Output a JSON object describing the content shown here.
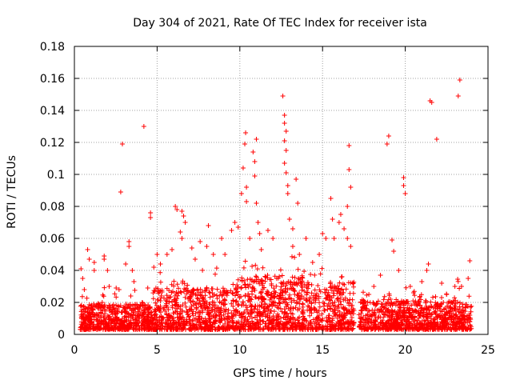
{
  "chart_data": {
    "type": "scatter",
    "title": "Day 304 of 2021, Rate Of TEC Index for receiver ista",
    "xlabel": "GPS time / hours",
    "ylabel": "ROTI / TECUs",
    "xlim": [
      0,
      25
    ],
    "ylim": [
      0,
      0.18
    ],
    "xticks": [
      0,
      5,
      10,
      15,
      20,
      25
    ],
    "xtick_labels": [
      "0",
      "5",
      "10",
      "15",
      "20",
      "25"
    ],
    "yticks": [
      0,
      0.02,
      0.04,
      0.06,
      0.08,
      0.1,
      0.12,
      0.14,
      0.16,
      0.18
    ],
    "ytick_labels": [
      "0",
      "0.02",
      "0.04",
      "0.06",
      "0.08",
      "0.1",
      "0.12",
      "0.14",
      "0.16",
      "0.18"
    ],
    "grid": true,
    "marker": "+",
    "series": [
      {
        "name": "ROTI",
        "color": "#ff0000",
        "points": [
          [
            0.4,
            0.041
          ],
          [
            0.5,
            0.035
          ],
          [
            0.6,
            0.028
          ],
          [
            0.8,
            0.053
          ],
          [
            0.9,
            0.047
          ],
          [
            1.2,
            0.045
          ],
          [
            1.2,
            0.04
          ],
          [
            1.8,
            0.049
          ],
          [
            1.8,
            0.047
          ],
          [
            2.0,
            0.04
          ],
          [
            2.1,
            0.03
          ],
          [
            2.7,
            0.028
          ],
          [
            2.8,
            0.089
          ],
          [
            2.9,
            0.119
          ],
          [
            3.1,
            0.044
          ],
          [
            3.3,
            0.058
          ],
          [
            3.3,
            0.055
          ],
          [
            3.5,
            0.04
          ],
          [
            3.6,
            0.033
          ],
          [
            4.1,
            0.02
          ],
          [
            4.2,
            0.13
          ],
          [
            4.6,
            0.076
          ],
          [
            4.6,
            0.073
          ],
          [
            4.5,
            0.016
          ],
          [
            4.8,
            0.042
          ],
          [
            5.0,
            0.05
          ],
          [
            5.2,
            0.044
          ],
          [
            5.6,
            0.05
          ],
          [
            5.9,
            0.053
          ],
          [
            6.1,
            0.08
          ],
          [
            6.2,
            0.078
          ],
          [
            6.4,
            0.064
          ],
          [
            6.5,
            0.077
          ],
          [
            6.6,
            0.074
          ],
          [
            6.7,
            0.07
          ],
          [
            6.5,
            0.06
          ],
          [
            7.1,
            0.054
          ],
          [
            7.3,
            0.047
          ],
          [
            7.6,
            0.058
          ],
          [
            8.0,
            0.055
          ],
          [
            8.1,
            0.068
          ],
          [
            8.4,
            0.05
          ],
          [
            8.9,
            0.06
          ],
          [
            9.1,
            0.05
          ],
          [
            9.5,
            0.065
          ],
          [
            9.7,
            0.07
          ],
          [
            9.9,
            0.067
          ],
          [
            10.1,
            0.088
          ],
          [
            10.2,
            0.104
          ],
          [
            10.3,
            0.119
          ],
          [
            10.35,
            0.126
          ],
          [
            10.4,
            0.092
          ],
          [
            10.4,
            0.083
          ],
          [
            10.6,
            0.06
          ],
          [
            10.8,
            0.114
          ],
          [
            10.9,
            0.108
          ],
          [
            10.9,
            0.099
          ],
          [
            11.0,
            0.122
          ],
          [
            11.0,
            0.082
          ],
          [
            11.1,
            0.07
          ],
          [
            11.2,
            0.063
          ],
          [
            11.3,
            0.053
          ],
          [
            11.7,
            0.065
          ],
          [
            12.0,
            0.06
          ],
          [
            12.6,
            0.149
          ],
          [
            12.7,
            0.137
          ],
          [
            12.7,
            0.132
          ],
          [
            12.8,
            0.127
          ],
          [
            12.7,
            0.121
          ],
          [
            12.8,
            0.115
          ],
          [
            12.7,
            0.107
          ],
          [
            12.8,
            0.101
          ],
          [
            12.9,
            0.093
          ],
          [
            12.9,
            0.088
          ],
          [
            13.0,
            0.072
          ],
          [
            13.2,
            0.066
          ],
          [
            13.4,
            0.097
          ],
          [
            13.5,
            0.082
          ],
          [
            13.2,
            0.055
          ],
          [
            13.6,
            0.05
          ],
          [
            14.0,
            0.06
          ],
          [
            14.4,
            0.045
          ],
          [
            14.8,
            0.05
          ],
          [
            15.0,
            0.063
          ],
          [
            15.2,
            0.06
          ],
          [
            15.5,
            0.085
          ],
          [
            15.6,
            0.072
          ],
          [
            15.7,
            0.06
          ],
          [
            16.0,
            0.07
          ],
          [
            16.1,
            0.075
          ],
          [
            16.3,
            0.066
          ],
          [
            16.5,
            0.08
          ],
          [
            16.6,
            0.118
          ],
          [
            16.6,
            0.103
          ],
          [
            16.7,
            0.092
          ],
          [
            16.5,
            0.06
          ],
          [
            16.7,
            0.055
          ],
          [
            17.3,
            0.02
          ],
          [
            17.8,
            0.025
          ],
          [
            18.1,
            0.03
          ],
          [
            18.5,
            0.037
          ],
          [
            18.9,
            0.119
          ],
          [
            19.0,
            0.124
          ],
          [
            19.2,
            0.059
          ],
          [
            19.3,
            0.052
          ],
          [
            19.6,
            0.04
          ],
          [
            19.9,
            0.098
          ],
          [
            19.9,
            0.093
          ],
          [
            20.0,
            0.088
          ],
          [
            20.3,
            0.03
          ],
          [
            20.5,
            0.026
          ],
          [
            21.0,
            0.033
          ],
          [
            21.3,
            0.04
          ],
          [
            21.5,
            0.146
          ],
          [
            21.6,
            0.145
          ],
          [
            21.4,
            0.044
          ],
          [
            21.9,
            0.122
          ],
          [
            22.2,
            0.032
          ],
          [
            22.5,
            0.025
          ],
          [
            23.0,
            0.03
          ],
          [
            23.2,
            0.149
          ],
          [
            23.3,
            0.159
          ],
          [
            23.4,
            0.03
          ],
          [
            23.9,
            0.046
          ],
          [
            23.8,
            0.035
          ]
        ]
      }
    ]
  }
}
